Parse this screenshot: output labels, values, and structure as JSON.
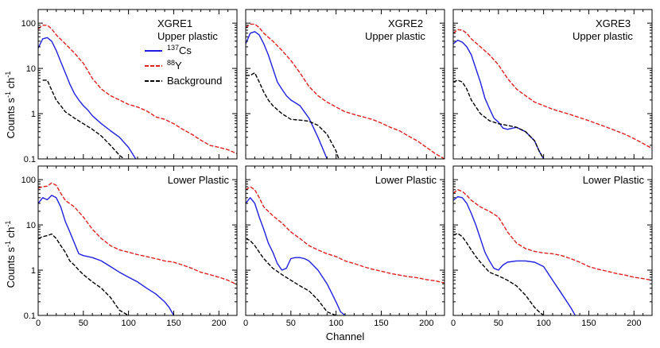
{
  "figure": {
    "ylabel": "Counts s",
    "ylabel_sup1": "-1",
    "ylabel_mid": " ch",
    "ylabel_sup2": "-1",
    "xlabel": "Channel"
  },
  "colors": {
    "cs137": "#1f1fe0",
    "y88": "#e01f1f",
    "background": "#000000"
  },
  "legend": [
    {
      "sup": "137",
      "label": "Cs",
      "series": "cs137",
      "style": "solid"
    },
    {
      "sup": "88",
      "label": "Y",
      "series": "y88",
      "style": "dashed"
    },
    {
      "sup": "",
      "label": "Background",
      "series": "background",
      "style": "dashed"
    }
  ],
  "chart_data": [
    {
      "type": "line",
      "row": 0,
      "col": 0,
      "title": "XGRE1",
      "subtitle": "Upper plastic",
      "xlim": [
        0,
        220
      ],
      "ylim": [
        0.1,
        200
      ],
      "yscale": "log",
      "series": [
        {
          "key": "cs137",
          "x": [
            0,
            5,
            10,
            15,
            20,
            25,
            30,
            35,
            40,
            45,
            50,
            55,
            60,
            70,
            80,
            90,
            100,
            108
          ],
          "values": [
            28,
            45,
            48,
            40,
            25,
            14,
            8,
            4.5,
            2.8,
            2,
            1.5,
            1.2,
            0.9,
            0.6,
            0.42,
            0.3,
            0.18,
            0.1
          ]
        },
        {
          "key": "y88",
          "x": [
            0,
            5,
            10,
            15,
            20,
            30,
            40,
            50,
            60,
            70,
            80,
            90,
            100,
            110,
            120,
            125,
            130,
            140,
            150,
            160,
            170,
            180,
            190,
            200,
            210,
            220
          ],
          "values": [
            75,
            90,
            90,
            75,
            55,
            35,
            22,
            13,
            6,
            3.5,
            2.5,
            2,
            1.6,
            1.4,
            1.15,
            1.0,
            0.85,
            0.75,
            0.6,
            0.45,
            0.35,
            0.26,
            0.2,
            0.18,
            0.16,
            0.13
          ]
        },
        {
          "key": "background",
          "x": [
            5,
            10,
            15,
            20,
            25,
            30,
            40,
            50,
            60,
            70,
            80,
            90,
            95
          ],
          "values": [
            5.5,
            5.5,
            3.3,
            2,
            1.5,
            1.1,
            0.8,
            0.6,
            0.45,
            0.32,
            0.2,
            0.12,
            0.1
          ]
        }
      ]
    },
    {
      "type": "line",
      "row": 0,
      "col": 1,
      "title": "XGRE2",
      "subtitle": "Upper plastic",
      "xlim": [
        0,
        220
      ],
      "ylim": [
        0.1,
        200
      ],
      "yscale": "log",
      "series": [
        {
          "key": "cs137",
          "x": [
            0,
            5,
            10,
            15,
            20,
            25,
            30,
            35,
            40,
            45,
            50,
            60,
            70,
            80,
            90
          ],
          "values": [
            35,
            60,
            65,
            55,
            35,
            20,
            10,
            5,
            3.5,
            2.5,
            2,
            1.5,
            0.8,
            0.3,
            0.1
          ]
        },
        {
          "key": "y88",
          "x": [
            0,
            5,
            10,
            15,
            20,
            30,
            40,
            50,
            60,
            70,
            80,
            90,
            100,
            110,
            125,
            140,
            150,
            160,
            170,
            180,
            190,
            200,
            210,
            220
          ],
          "values": [
            80,
            95,
            95,
            80,
            60,
            40,
            25,
            15,
            8,
            4,
            2.5,
            1.8,
            1.4,
            1.1,
            0.9,
            0.75,
            0.62,
            0.5,
            0.42,
            0.32,
            0.25,
            0.18,
            0.13,
            0.1
          ]
        },
        {
          "key": "background",
          "x": [
            0,
            5,
            10,
            15,
            20,
            25,
            30,
            40,
            50,
            60,
            70,
            80,
            90,
            100,
            103
          ],
          "values": [
            7,
            7,
            8,
            5,
            3,
            2,
            1.5,
            1,
            0.75,
            0.72,
            0.68,
            0.55,
            0.35,
            0.15,
            0.1
          ]
        }
      ]
    },
    {
      "type": "line",
      "row": 0,
      "col": 2,
      "title": "XGRE3",
      "subtitle": "Upper plastic",
      "xlim": [
        0,
        220
      ],
      "ylim": [
        0.1,
        200
      ],
      "yscale": "log",
      "series": [
        {
          "key": "cs137",
          "x": [
            0,
            5,
            10,
            15,
            20,
            25,
            30,
            35,
            40,
            45,
            50,
            55,
            60,
            70,
            80,
            90,
            95,
            100
          ],
          "values": [
            35,
            42,
            38,
            30,
            20,
            10,
            5,
            2.2,
            1.3,
            0.8,
            0.65,
            0.48,
            0.45,
            0.5,
            0.4,
            0.25,
            0.15,
            0.1
          ]
        },
        {
          "key": "y88",
          "x": [
            0,
            5,
            10,
            15,
            20,
            30,
            40,
            50,
            60,
            70,
            80,
            90,
            100,
            110,
            130,
            150,
            170,
            190,
            200,
            210,
            220
          ],
          "values": [
            60,
            72,
            70,
            60,
            45,
            30,
            20,
            12,
            6,
            3.5,
            2.5,
            1.8,
            1.5,
            1.25,
            0.95,
            0.7,
            0.5,
            0.35,
            0.28,
            0.22,
            0.17
          ]
        },
        {
          "key": "background",
          "x": [
            0,
            5,
            10,
            15,
            20,
            30,
            40,
            50,
            60,
            70,
            80,
            90,
            95,
            100
          ],
          "values": [
            5,
            5.5,
            5,
            3.5,
            2,
            1,
            0.7,
            0.6,
            0.55,
            0.5,
            0.4,
            0.25,
            0.15,
            0.1
          ]
        }
      ]
    },
    {
      "type": "line",
      "row": 1,
      "col": 0,
      "title": "Lower Plastic",
      "subtitle": "",
      "xlim": [
        0,
        220
      ],
      "ylim": [
        0.1,
        200
      ],
      "yscale": "log",
      "series": [
        {
          "key": "cs137",
          "x": [
            0,
            5,
            10,
            15,
            20,
            25,
            30,
            35,
            40,
            45,
            50,
            60,
            70,
            80,
            90,
            100,
            110,
            120,
            130,
            140,
            145,
            150
          ],
          "values": [
            30,
            40,
            36,
            45,
            40,
            25,
            12,
            7,
            4,
            2.3,
            2.1,
            1.9,
            1.6,
            1.2,
            0.9,
            0.7,
            0.55,
            0.4,
            0.3,
            0.2,
            0.15,
            0.1
          ]
        },
        {
          "key": "y88",
          "x": [
            0,
            5,
            10,
            15,
            20,
            25,
            30,
            40,
            50,
            60,
            70,
            80,
            90,
            100,
            110,
            120,
            130,
            140,
            150,
            160,
            170,
            180,
            190,
            200,
            210,
            220
          ],
          "values": [
            65,
            70,
            72,
            85,
            75,
            50,
            35,
            25,
            15,
            8,
            5,
            3.5,
            2.8,
            2.5,
            2.2,
            2,
            1.8,
            1.6,
            1.5,
            1.3,
            1.1,
            0.9,
            0.8,
            0.7,
            0.6,
            0.48
          ]
        },
        {
          "key": "background",
          "x": [
            0,
            5,
            10,
            15,
            20,
            25,
            30,
            35,
            40,
            45,
            50,
            60,
            70,
            80,
            90,
            100
          ],
          "values": [
            5,
            5.5,
            5.8,
            6.3,
            5,
            3.5,
            2.5,
            1.6,
            1.3,
            1,
            0.8,
            0.55,
            0.4,
            0.25,
            0.13,
            0.1
          ]
        }
      ]
    },
    {
      "type": "line",
      "row": 1,
      "col": 1,
      "title": "Lower Plastic",
      "subtitle": "",
      "xlim": [
        0,
        220
      ],
      "ylim": [
        0.1,
        200
      ],
      "yscale": "log",
      "series": [
        {
          "key": "cs137",
          "x": [
            0,
            5,
            10,
            15,
            20,
            25,
            30,
            35,
            40,
            45,
            50,
            55,
            60,
            65,
            70,
            80,
            90,
            100,
            105,
            110
          ],
          "values": [
            30,
            40,
            30,
            15,
            8,
            4,
            2.5,
            1.4,
            1.0,
            1.1,
            1.8,
            1.9,
            1.9,
            1.8,
            1.6,
            1.0,
            0.5,
            0.2,
            0.12,
            0.1
          ]
        },
        {
          "key": "y88",
          "x": [
            0,
            5,
            10,
            15,
            20,
            30,
            40,
            50,
            60,
            70,
            80,
            90,
            100,
            110,
            120,
            130,
            140,
            150,
            160,
            170,
            180,
            190,
            200,
            210,
            220
          ],
          "values": [
            60,
            70,
            60,
            40,
            25,
            16,
            11,
            7,
            5,
            3.5,
            2.8,
            2.3,
            2,
            1.6,
            1.4,
            1.2,
            1.05,
            0.95,
            0.85,
            0.78,
            0.72,
            0.68,
            0.62,
            0.58,
            0.52
          ]
        },
        {
          "key": "background",
          "x": [
            0,
            5,
            10,
            15,
            20,
            30,
            40,
            50,
            60,
            70,
            80,
            90,
            100,
            102
          ],
          "values": [
            5,
            4.5,
            3.5,
            2.5,
            1.8,
            1.1,
            0.8,
            0.6,
            0.45,
            0.35,
            0.22,
            0.12,
            0.1,
            0.1
          ]
        }
      ]
    },
    {
      "type": "line",
      "row": 1,
      "col": 2,
      "title": "Lower Plastic",
      "subtitle": "",
      "xlim": [
        0,
        220
      ],
      "ylim": [
        0.1,
        200
      ],
      "yscale": "log",
      "series": [
        {
          "key": "cs137",
          "x": [
            0,
            5,
            10,
            15,
            20,
            25,
            30,
            35,
            40,
            45,
            50,
            55,
            60,
            70,
            80,
            90,
            100,
            110,
            120,
            130,
            135
          ],
          "values": [
            35,
            42,
            40,
            30,
            18,
            10,
            5,
            2.5,
            1.6,
            1.1,
            1.0,
            1.3,
            1.5,
            1.6,
            1.6,
            1.5,
            1.2,
            0.6,
            0.3,
            0.15,
            0.1
          ]
        },
        {
          "key": "y88",
          "x": [
            0,
            5,
            10,
            15,
            20,
            30,
            40,
            50,
            60,
            70,
            80,
            90,
            100,
            110,
            120,
            130,
            140,
            150,
            160,
            170,
            180,
            190,
            200,
            210,
            220
          ],
          "values": [
            50,
            60,
            55,
            45,
            35,
            25,
            20,
            15,
            7,
            4,
            3,
            2.6,
            2.4,
            2.3,
            2.1,
            1.8,
            1.5,
            1.2,
            1.05,
            0.95,
            0.85,
            0.78,
            0.7,
            0.65,
            0.6
          ]
        },
        {
          "key": "background",
          "x": [
            0,
            5,
            10,
            15,
            20,
            25,
            30,
            40,
            50,
            60,
            70,
            80,
            90,
            95,
            100
          ],
          "values": [
            6,
            6.5,
            5.5,
            4,
            2.8,
            2,
            1.5,
            0.9,
            0.75,
            0.6,
            0.45,
            0.28,
            0.15,
            0.12,
            0.1
          ]
        }
      ]
    }
  ],
  "axes": {
    "yticks": [
      {
        "value": 100,
        "label": "100"
      },
      {
        "value": 10,
        "label": "10"
      },
      {
        "value": 1,
        "label": "1"
      },
      {
        "value": 0.1,
        "label": "0.1"
      }
    ],
    "xticks": [
      {
        "value": 0,
        "label": "0"
      },
      {
        "value": 50,
        "label": "50"
      },
      {
        "value": 100,
        "label": "100"
      },
      {
        "value": 150,
        "label": "150"
      },
      {
        "value": 200,
        "label": "200"
      }
    ]
  }
}
